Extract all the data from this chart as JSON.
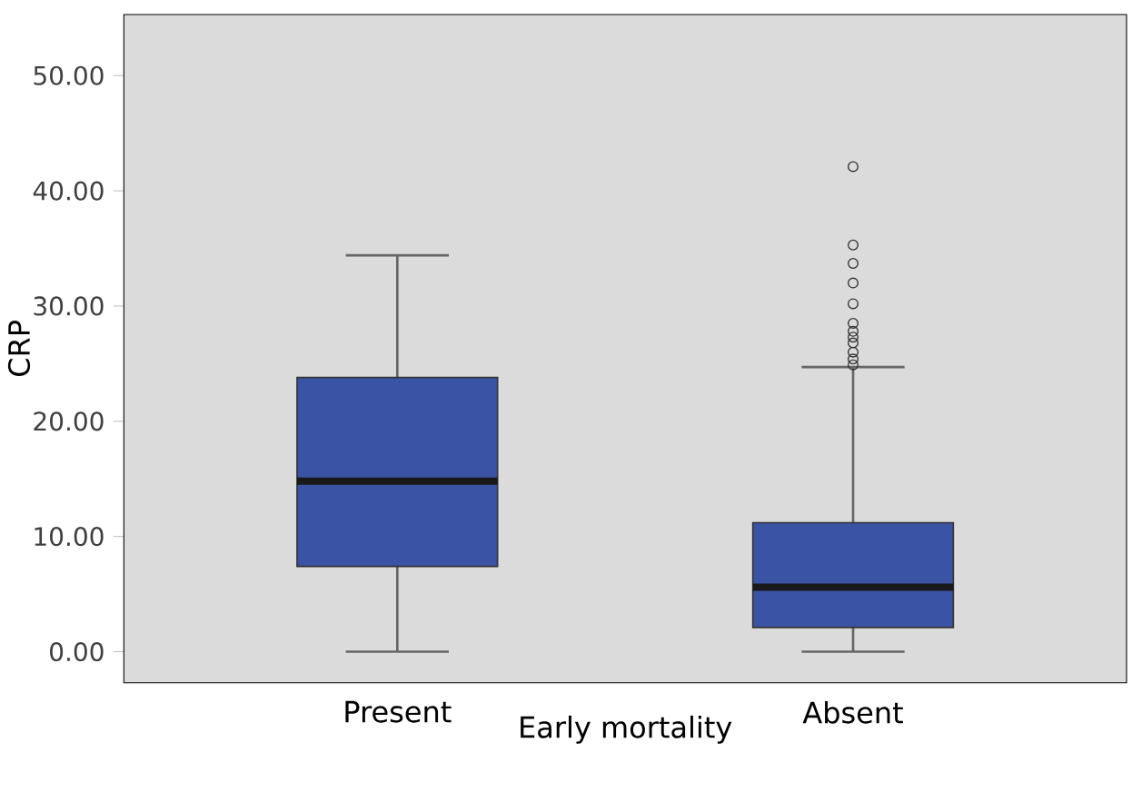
{
  "chart_data": {
    "type": "box",
    "xlabel": "Early mortality",
    "ylabel": "CRP",
    "categories": [
      "Present",
      "Absent"
    ],
    "ylim": [
      -2.7,
      55.3
    ],
    "yticks": [
      {
        "value": 0,
        "label": "0.00"
      },
      {
        "value": 10,
        "label": "10.00"
      },
      {
        "value": 20,
        "label": "20.00"
      },
      {
        "value": 30,
        "label": "30.00"
      },
      {
        "value": 40,
        "label": "40.00"
      },
      {
        "value": 50,
        "label": "50.00"
      }
    ],
    "grid": false,
    "series": [
      {
        "color": "#3a53a4",
        "boxes": [
          {
            "low": 0,
            "q1": 7.4,
            "median": 14.8,
            "q3": 23.8,
            "high": 34.4
          },
          {
            "low": 0,
            "q1": 2.1,
            "median": 5.6,
            "q3": 11.2,
            "high": 24.7,
            "outliers": [
              42.1,
              35.3,
              33.7,
              32.0,
              30.2,
              28.5,
              27.8,
              27.3,
              26.8,
              26.0,
              25.4,
              24.9
            ]
          }
        ]
      }
    ]
  }
}
